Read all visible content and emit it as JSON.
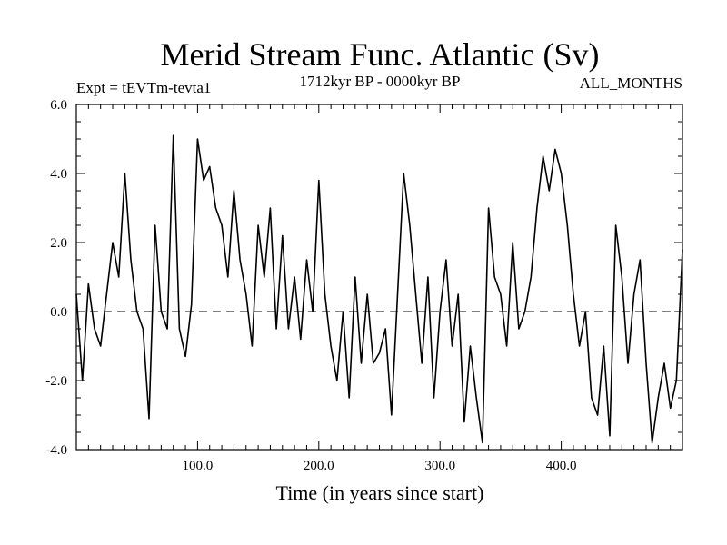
{
  "chart_data": {
    "type": "line",
    "title": "Merid Stream Func. Atlantic (Sv)",
    "subtitle_left": "Expt = tEVTm-tevta1",
    "subtitle_center": "1712kyr BP - 0000kyr BP",
    "subtitle_right": "ALL_MONTHS",
    "xlabel": "Time (in years since start)",
    "ylabel": "",
    "xlim": [
      0,
      500
    ],
    "ylim": [
      -4.0,
      6.0
    ],
    "x_ticks": [
      "100.0",
      "200.0",
      "300.0",
      "400.0"
    ],
    "x_tick_values": [
      100,
      200,
      300,
      400
    ],
    "y_ticks": [
      "6.0",
      "4.0",
      "2.0",
      "0.0",
      "-2.0",
      "-4.0"
    ],
    "y_tick_values": [
      6,
      4,
      2,
      0,
      -2,
      -4
    ],
    "reference_line": {
      "y": 0,
      "style": "dashed"
    },
    "series": [
      {
        "name": "Merid Stream Func. Atlantic",
        "x": [
          0,
          5,
          10,
          15,
          20,
          25,
          30,
          35,
          40,
          45,
          50,
          55,
          60,
          65,
          70,
          75,
          80,
          85,
          90,
          95,
          100,
          105,
          110,
          115,
          120,
          125,
          130,
          135,
          140,
          145,
          150,
          155,
          160,
          165,
          170,
          175,
          180,
          185,
          190,
          195,
          200,
          205,
          210,
          215,
          220,
          225,
          230,
          235,
          240,
          245,
          250,
          255,
          260,
          265,
          270,
          275,
          280,
          285,
          290,
          295,
          300,
          305,
          310,
          315,
          320,
          325,
          330,
          335,
          340,
          345,
          350,
          355,
          360,
          365,
          370,
          375,
          380,
          385,
          390,
          395,
          400,
          405,
          410,
          415,
          420,
          425,
          430,
          435,
          440,
          445,
          450,
          455,
          460,
          465,
          470,
          475,
          480,
          485,
          490,
          495,
          500
        ],
        "values": [
          0.5,
          -2.0,
          0.8,
          -0.5,
          -1.0,
          0.5,
          2.0,
          1.0,
          4.0,
          1.5,
          0.0,
          -0.5,
          -3.1,
          2.5,
          0.0,
          -0.5,
          5.1,
          -0.5,
          -1.3,
          0.2,
          5.0,
          3.8,
          4.2,
          3.0,
          2.5,
          1.0,
          3.5,
          1.5,
          0.5,
          -1.0,
          2.5,
          1.0,
          3.0,
          -0.5,
          2.2,
          -0.5,
          1.0,
          -0.8,
          1.5,
          0.0,
          3.8,
          0.5,
          -1.0,
          -2.0,
          0.0,
          -2.5,
          1.0,
          -1.5,
          0.5,
          -1.5,
          -1.2,
          -0.5,
          -3.0,
          0.5,
          4.0,
          2.5,
          0.5,
          -1.5,
          1.0,
          -2.5,
          0.0,
          1.5,
          -1.0,
          0.5,
          -3.2,
          -1.0,
          -2.5,
          -3.8,
          3.0,
          1.0,
          0.5,
          -1.0,
          2.0,
          -0.5,
          0.0,
          1.0,
          3.0,
          4.5,
          3.5,
          4.7,
          4.0,
          2.5,
          0.5,
          -1.0,
          0.0,
          -2.5,
          -3.0,
          -1.0,
          -3.6,
          2.5,
          1.0,
          -1.5,
          0.5,
          1.5,
          -1.5,
          -3.8,
          -2.5,
          -1.5,
          -2.8,
          -2.0,
          1.8
        ]
      }
    ]
  }
}
